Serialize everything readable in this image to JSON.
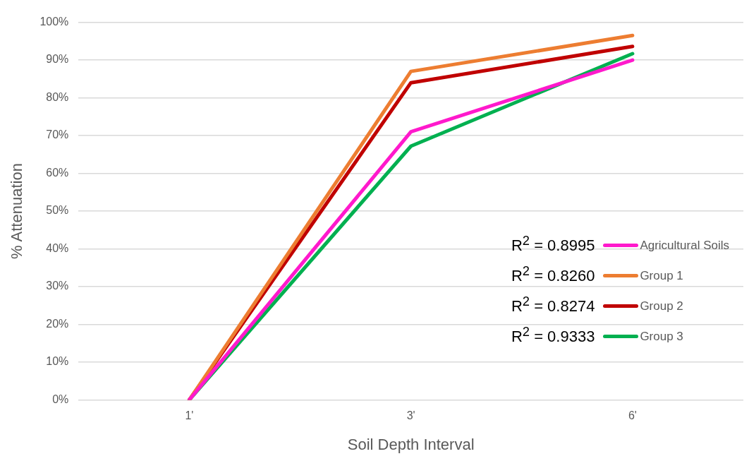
{
  "chart_data": {
    "type": "line",
    "xlabel": "Soil Depth Interval",
    "ylabel": "% Attenuation",
    "categories": [
      "1'",
      "3'",
      "6'"
    ],
    "series": [
      {
        "name": "Agricultural Soils",
        "color": "#ff19cc",
        "values": [
          0,
          71,
          90
        ]
      },
      {
        "name": "Group 1",
        "color": "#ed7d31",
        "values": [
          0,
          87,
          96.5
        ]
      },
      {
        "name": "Group 2",
        "color": "#c00000",
        "values": [
          0,
          84,
          93.6
        ]
      },
      {
        "name": "Group 3",
        "color": "#00b050",
        "values": [
          0,
          67.2,
          91.7
        ]
      }
    ],
    "ylim": [
      0,
      100
    ],
    "yticks": [
      {
        "value": 0,
        "label": "0%"
      },
      {
        "value": 10,
        "label": "10%"
      },
      {
        "value": 20,
        "label": "20%"
      },
      {
        "value": 30,
        "label": "30%"
      },
      {
        "value": 40,
        "label": "40%"
      },
      {
        "value": 50,
        "label": "50%"
      },
      {
        "value": 60,
        "label": "60%"
      },
      {
        "value": 70,
        "label": "70%"
      },
      {
        "value": 80,
        "label": "80%"
      },
      {
        "value": 90,
        "label": "90%"
      },
      {
        "value": 100,
        "label": "100%"
      }
    ],
    "grid": "y",
    "legend": "right",
    "marker": "none",
    "line_style": "solid",
    "annotations": [
      "R$^{2}$ = 0.8995",
      "R$^{2}$ = 0.8260",
      "R$^{2}$ = 0.8274",
      "R$^{2}$ = 0.9333"
    ]
  }
}
